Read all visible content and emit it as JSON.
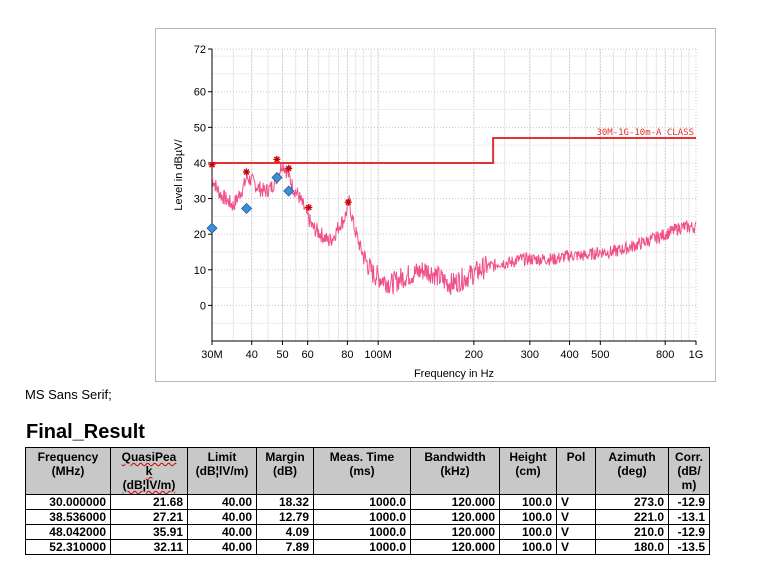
{
  "chart_data": {
    "type": "line",
    "title": "",
    "xlabel": "Frequency in Hz",
    "ylabel": "Level in dBµV/",
    "x_scale": "log",
    "xlim": [
      30,
      1000
    ],
    "ylim": [
      -10,
      72
    ],
    "x_ticks": [
      {
        "value": 30,
        "label": "30M"
      },
      {
        "value": 40,
        "label": "40"
      },
      {
        "value": 50,
        "label": "50"
      },
      {
        "value": 60,
        "label": "60"
      },
      {
        "value": 80,
        "label": "80"
      },
      {
        "value": 100,
        "label": "100M"
      },
      {
        "value": 200,
        "label": "200"
      },
      {
        "value": 300,
        "label": "300"
      },
      {
        "value": 400,
        "label": "400"
      },
      {
        "value": 500,
        "label": "500"
      },
      {
        "value": 800,
        "label": "800"
      },
      {
        "value": 1000,
        "label": "1G"
      }
    ],
    "y_ticks": [
      72,
      60,
      50,
      40,
      30,
      20,
      10,
      0
    ],
    "grid": true,
    "limit_line": {
      "label": "30M-1G-10m-A CLASS",
      "color": "#e83030",
      "points": [
        [
          30,
          40
        ],
        [
          230,
          40
        ],
        [
          230,
          47
        ],
        [
          1000,
          47
        ]
      ]
    },
    "series": [
      {
        "kind": "spectrum",
        "color": "#f0508a",
        "x": [
          30,
          31,
          32,
          33,
          34,
          35,
          36,
          37,
          38,
          38.5,
          40,
          42,
          44,
          46,
          48,
          50,
          52,
          54,
          56,
          58,
          60,
          62,
          64,
          66,
          68,
          70,
          72,
          74,
          76,
          78,
          80,
          81,
          84,
          88,
          92,
          96,
          100,
          105,
          110,
          115,
          120,
          130,
          140,
          150,
          160,
          170,
          180,
          190,
          200,
          210,
          220,
          230,
          240,
          260,
          280,
          300,
          330,
          360,
          400,
          450,
          500,
          550,
          600,
          650,
          700,
          750,
          800,
          850,
          900,
          950,
          1000
        ],
        "y": [
          36,
          33,
          31,
          30,
          29,
          28,
          30,
          32,
          34,
          36,
          35,
          33,
          32,
          33,
          36,
          40,
          37,
          33,
          31,
          28,
          25,
          22,
          21,
          20,
          19,
          18,
          19,
          21,
          23,
          24,
          27,
          29,
          22,
          16,
          12,
          9,
          8,
          7,
          6,
          7,
          8,
          9,
          10,
          9,
          7,
          6,
          7,
          8,
          9,
          10,
          11,
          11,
          12,
          12,
          13,
          13,
          13,
          13,
          14,
          14,
          15,
          15,
          16,
          17,
          18,
          19,
          20,
          21,
          22,
          22,
          22
        ]
      },
      {
        "kind": "peak",
        "color": "#cc0000",
        "marker": "star",
        "x": [
          30,
          38.5,
          48.0,
          52.3,
          60.5,
          80.5
        ],
        "y": [
          39.5,
          37.5,
          41,
          38.5,
          27.5,
          29
        ]
      },
      {
        "kind": "quasi-peak",
        "color": "#3a8fd8",
        "marker": "diamond",
        "x": [
          30.0,
          38.536,
          48.042,
          52.31
        ],
        "y": [
          21.68,
          27.21,
          35.91,
          32.11
        ]
      }
    ]
  },
  "overlay": {
    "font_note": "MS Sans Serif;"
  },
  "result": {
    "title": "Final_Result",
    "headers": {
      "frequency": "Frequency\n(MHz)",
      "quasipeak": "QuasiPea\nk\n(dB¦lV/m)",
      "limit": "Limit\n(dB¦lV/m)",
      "margin": "Margin\n(dB)",
      "meas_time": "Meas. Time\n(ms)",
      "bandwidth": "Bandwidth\n(kHz)",
      "height": "Height\n(cm)",
      "pol": "Pol",
      "azimuth": "Azimuth\n(deg)",
      "corr": "Corr.\n(dB/\nm)"
    },
    "rows": [
      [
        "30.000000",
        "21.68",
        "40.00",
        "18.32",
        "1000.0",
        "120.000",
        "100.0",
        "V",
        "273.0",
        "-12.9"
      ],
      [
        "38.536000",
        "27.21",
        "40.00",
        "12.79",
        "1000.0",
        "120.000",
        "100.0",
        "V",
        "221.0",
        "-13.1"
      ],
      [
        "48.042000",
        "35.91",
        "40.00",
        "4.09",
        "1000.0",
        "120.000",
        "100.0",
        "V",
        "210.0",
        "-12.9"
      ],
      [
        "52.310000",
        "32.11",
        "40.00",
        "7.89",
        "1000.0",
        "120.000",
        "100.0",
        "V",
        "180.0",
        "-13.5"
      ]
    ]
  }
}
